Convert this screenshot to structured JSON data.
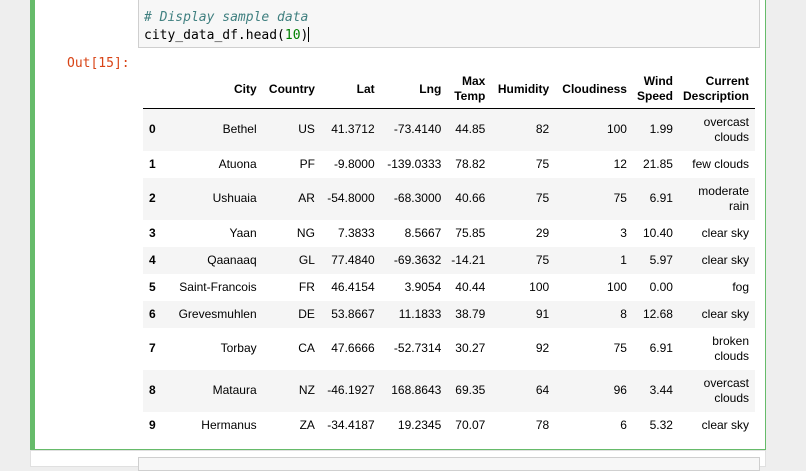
{
  "code": {
    "comment": "# Display sample data",
    "line2_prefix": "city_data_df.head(",
    "line2_arg": "10",
    "line2_suffix": ")"
  },
  "prompt": "Out[15]:",
  "table": {
    "columns": [
      "City",
      "Country",
      "Lat",
      "Lng",
      "Max Temp",
      "Humidity",
      "Cloudiness",
      "Wind Speed",
      "Current Description"
    ],
    "rows": [
      [
        "0",
        "Bethel",
        "US",
        "41.3712",
        "-73.4140",
        "44.85",
        "82",
        "100",
        "1.99",
        "overcast clouds"
      ],
      [
        "1",
        "Atuona",
        "PF",
        "-9.8000",
        "-139.0333",
        "78.82",
        "75",
        "12",
        "21.85",
        "few clouds"
      ],
      [
        "2",
        "Ushuaia",
        "AR",
        "-54.8000",
        "-68.3000",
        "40.66",
        "75",
        "75",
        "6.91",
        "moderate rain"
      ],
      [
        "3",
        "Yaan",
        "NG",
        "7.3833",
        "8.5667",
        "75.85",
        "29",
        "3",
        "10.40",
        "clear sky"
      ],
      [
        "4",
        "Qaanaaq",
        "GL",
        "77.4840",
        "-69.3632",
        "-14.21",
        "75",
        "1",
        "5.97",
        "clear sky"
      ],
      [
        "5",
        "Saint-Francois",
        "FR",
        "46.4154",
        "3.9054",
        "40.44",
        "100",
        "100",
        "0.00",
        "fog"
      ],
      [
        "6",
        "Grevesmuhlen",
        "DE",
        "53.8667",
        "11.1833",
        "38.79",
        "91",
        "8",
        "12.68",
        "clear sky"
      ],
      [
        "7",
        "Torbay",
        "CA",
        "47.6666",
        "-52.7314",
        "30.27",
        "92",
        "75",
        "6.91",
        "broken clouds"
      ],
      [
        "8",
        "Mataura",
        "NZ",
        "-46.1927",
        "168.8643",
        "69.35",
        "64",
        "96",
        "3.44",
        "overcast clouds"
      ],
      [
        "9",
        "Hermanus",
        "ZA",
        "-34.4187",
        "19.2345",
        "70.07",
        "78",
        "6",
        "5.32",
        "clear sky"
      ]
    ]
  }
}
